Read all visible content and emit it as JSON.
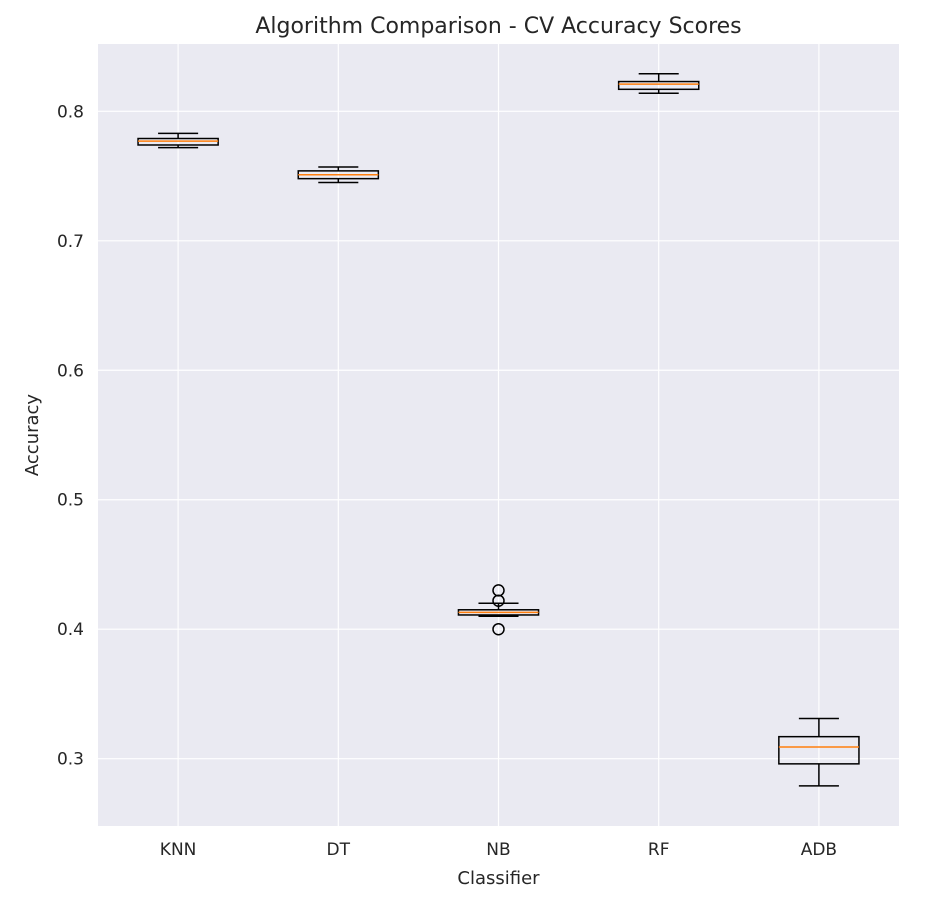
{
  "chart_data": {
    "type": "box",
    "title": "Algorithm Comparison - CV Accuracy Scores",
    "xlabel": "Classifier",
    "ylabel": "Accuracy",
    "categories": [
      "KNN",
      "DT",
      "NB",
      "RF",
      "ADB"
    ],
    "ylim": [
      0.248,
      0.852
    ],
    "yticks": [
      0.3,
      0.4,
      0.5,
      0.6,
      0.7,
      0.8
    ],
    "ytick_labels": [
      "0.3",
      "0.4",
      "0.5",
      "0.6",
      "0.7",
      "0.8"
    ],
    "grid": true,
    "boxes": [
      {
        "label": "KNN",
        "whisker_low": 0.772,
        "q1": 0.774,
        "median": 0.777,
        "q3": 0.779,
        "whisker_high": 0.783,
        "outliers": []
      },
      {
        "label": "DT",
        "whisker_low": 0.745,
        "q1": 0.748,
        "median": 0.751,
        "q3": 0.754,
        "whisker_high": 0.757,
        "outliers": []
      },
      {
        "label": "NB",
        "whisker_low": 0.41,
        "q1": 0.411,
        "median": 0.413,
        "q3": 0.415,
        "whisker_high": 0.42,
        "outliers": [
          0.4,
          0.422,
          0.43
        ]
      },
      {
        "label": "RF",
        "whisker_low": 0.814,
        "q1": 0.817,
        "median": 0.821,
        "q3": 0.823,
        "whisker_high": 0.829,
        "outliers": []
      },
      {
        "label": "ADB",
        "whisker_low": 0.279,
        "q1": 0.296,
        "median": 0.309,
        "q3": 0.317,
        "whisker_high": 0.331,
        "outliers": []
      }
    ],
    "colors": {
      "background": "#eaeaf2",
      "grid": "#ffffff",
      "box": "#000000",
      "median": "#ff7f0e"
    }
  }
}
